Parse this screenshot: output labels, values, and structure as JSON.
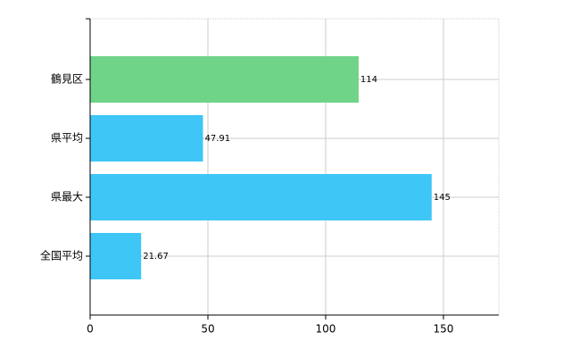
{
  "chart_data": {
    "type": "bar",
    "orientation": "horizontal",
    "categories": [
      "鶴見区",
      "県平均",
      "県最大",
      "全国平均"
    ],
    "values": [
      114,
      47.91,
      145,
      21.67
    ],
    "colors": [
      "#6fd488",
      "#3ec6f7",
      "#3ec6f7",
      "#3ec6f7"
    ],
    "xlim": [
      0,
      173.5
    ],
    "xticks": [
      0,
      50,
      100,
      150
    ],
    "grid": true
  }
}
